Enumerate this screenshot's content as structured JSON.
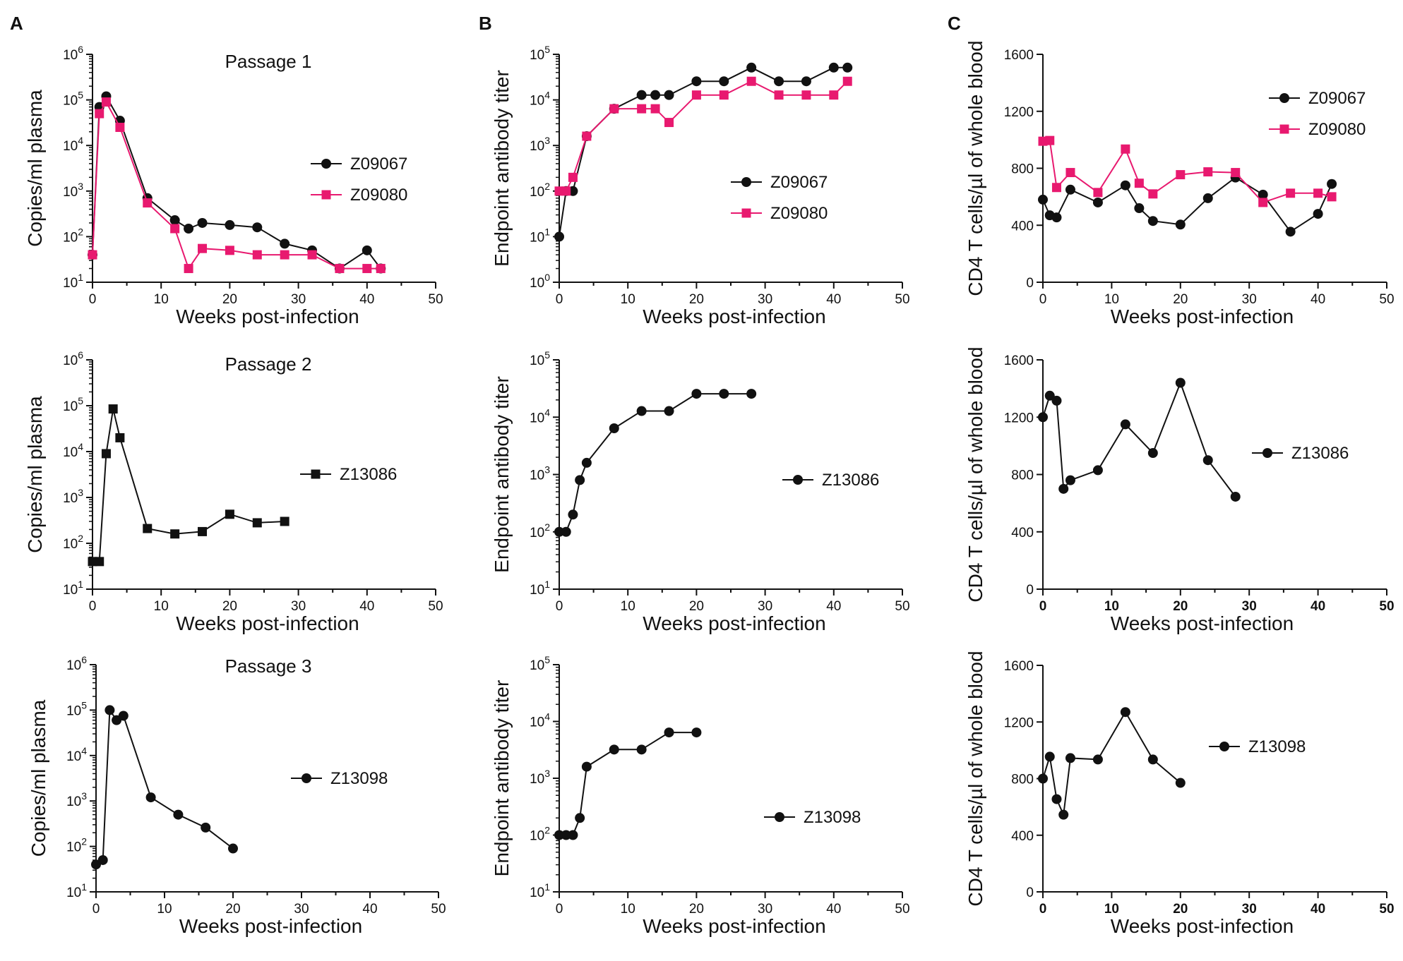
{
  "panel_labels": [
    "A",
    "B",
    "C"
  ],
  "colors": {
    "black_series": "#111111",
    "pink_series": "#e8196f",
    "axis": "#111111"
  },
  "chart_data": [
    {
      "id": "A1",
      "type": "line",
      "panel": "A",
      "title": "Passage 1",
      "xlabel": "Weeks post-infection",
      "ylabel": "Copies/ml plasma",
      "xlim": [
        0,
        50
      ],
      "xticks": [
        0,
        10,
        20,
        30,
        40,
        50
      ],
      "yscale": "log",
      "ylim_exp": [
        1,
        6
      ],
      "legend_position": "right",
      "series": [
        {
          "name": "Z09067",
          "marker": "circle",
          "color": "#111111",
          "x": [
            0,
            1,
            2,
            4,
            8,
            12,
            14,
            16,
            20,
            24,
            28,
            32,
            36,
            40,
            42
          ],
          "y": [
            40,
            70000,
            120000,
            35000,
            700,
            230,
            150,
            200,
            180,
            160,
            70,
            50,
            20,
            50,
            20
          ]
        },
        {
          "name": "Z09080",
          "marker": "square",
          "color": "#e8196f",
          "x": [
            0,
            1,
            2,
            4,
            8,
            12,
            14,
            16,
            20,
            24,
            28,
            32,
            36,
            40,
            42
          ],
          "y": [
            40,
            50000,
            90000,
            25000,
            550,
            150,
            20,
            55,
            50,
            40,
            40,
            40,
            20,
            20,
            20
          ]
        }
      ]
    },
    {
      "id": "A2",
      "type": "line",
      "panel": "A",
      "title": "Passage 2",
      "xlabel": "Weeks post-infection",
      "ylabel": "Copies/ml plasma",
      "xlim": [
        0,
        50
      ],
      "xticks": [
        0,
        10,
        20,
        30,
        40,
        50
      ],
      "yscale": "log",
      "ylim_exp": [
        1,
        6
      ],
      "legend_position": "right",
      "series": [
        {
          "name": "Z13086",
          "marker": "square",
          "color": "#111111",
          "x": [
            0,
            1,
            2,
            3,
            4,
            8,
            12,
            16,
            20,
            24,
            28
          ],
          "y": [
            40,
            40,
            9000,
            85000,
            20000,
            210,
            160,
            180,
            430,
            280,
            300
          ]
        }
      ]
    },
    {
      "id": "A3",
      "type": "line",
      "panel": "A",
      "title": "Passage 3",
      "xlabel": "Weeks post-infection",
      "ylabel": "Copies/ml plasma",
      "xlim": [
        0,
        50
      ],
      "xticks": [
        0,
        10,
        20,
        30,
        40,
        50
      ],
      "yscale": "log",
      "ylim_exp": [
        1,
        6
      ],
      "legend_position": "right",
      "series": [
        {
          "name": "Z13098",
          "marker": "circle",
          "color": "#111111",
          "x": [
            0,
            1,
            2,
            3,
            4,
            8,
            12,
            16,
            20
          ],
          "y": [
            40,
            50,
            100000,
            60000,
            75000,
            1200,
            500,
            260,
            90
          ]
        }
      ]
    },
    {
      "id": "B1",
      "type": "line",
      "panel": "B",
      "title": "",
      "xlabel": "Weeks post-infection",
      "ylabel": "Endpoint antibody titer",
      "xlim": [
        0,
        50
      ],
      "xticks": [
        0,
        10,
        20,
        30,
        40,
        50
      ],
      "yscale": "log",
      "ylim_exp": [
        0,
        5
      ],
      "legend_position": "right",
      "series": [
        {
          "name": "Z09067",
          "marker": "circle",
          "color": "#111111",
          "x": [
            0,
            1,
            2,
            4,
            8,
            12,
            14,
            16,
            20,
            24,
            28,
            32,
            36,
            40,
            42
          ],
          "y": [
            10,
            100,
            100,
            1600,
            6400,
            12800,
            12800,
            12800,
            25600,
            25600,
            51200,
            25600,
            25600,
            51200,
            51200
          ]
        },
        {
          "name": "Z09080",
          "marker": "square",
          "color": "#e8196f",
          "x": [
            0,
            1,
            2,
            4,
            8,
            12,
            14,
            16,
            20,
            24,
            28,
            32,
            36,
            40,
            42
          ],
          "y": [
            100,
            100,
            200,
            1600,
            6400,
            6400,
            6400,
            3200,
            12800,
            12800,
            25600,
            12800,
            12800,
            12800,
            25600
          ]
        }
      ]
    },
    {
      "id": "B2",
      "type": "line",
      "panel": "B",
      "title": "",
      "xlabel": "Weeks post-infection",
      "ylabel": "Endpoint antibody titer",
      "xlim": [
        0,
        50
      ],
      "xticks": [
        0,
        10,
        20,
        30,
        40,
        50
      ],
      "yscale": "log",
      "ylim_exp": [
        1,
        5
      ],
      "legend_position": "right",
      "series": [
        {
          "name": "Z13086",
          "marker": "circle",
          "color": "#111111",
          "x": [
            0,
            1,
            2,
            3,
            4,
            8,
            12,
            16,
            20,
            24,
            28
          ],
          "y": [
            100,
            100,
            200,
            800,
            1600,
            6400,
            12800,
            12800,
            25600,
            25600,
            25600
          ]
        }
      ]
    },
    {
      "id": "B3",
      "type": "line",
      "panel": "B",
      "title": "",
      "xlabel": "Weeks post-infection",
      "ylabel": "Endpoint antibody titer",
      "xlim": [
        0,
        50
      ],
      "xticks": [
        0,
        10,
        20,
        30,
        40,
        50
      ],
      "yscale": "log",
      "ylim_exp": [
        1,
        5
      ],
      "legend_position": "right",
      "series": [
        {
          "name": "Z13098",
          "marker": "circle",
          "color": "#111111",
          "x": [
            0,
            1,
            2,
            3,
            4,
            8,
            12,
            16,
            20
          ],
          "y": [
            100,
            100,
            100,
            200,
            1600,
            3200,
            3200,
            6400,
            6400
          ]
        }
      ]
    },
    {
      "id": "C1",
      "type": "line",
      "panel": "C",
      "title": "",
      "xlabel": "Weeks post-infection",
      "ylabel": "CD4 T cells/µl of whole blood",
      "xlim": [
        0,
        50
      ],
      "xticks": [
        0,
        10,
        20,
        30,
        40,
        50
      ],
      "xticks_bold": false,
      "yscale": "linear",
      "ylim": [
        0,
        1600
      ],
      "yticks": [
        0,
        400,
        800,
        1200,
        1600
      ],
      "legend_position": "top-right",
      "series": [
        {
          "name": "Z09067",
          "marker": "circle",
          "color": "#111111",
          "x": [
            0,
            1,
            2,
            4,
            8,
            12,
            14,
            16,
            20,
            24,
            28,
            32,
            36,
            40,
            42
          ],
          "y": [
            580,
            470,
            455,
            650,
            560,
            680,
            520,
            430,
            405,
            590,
            735,
            615,
            355,
            480,
            690
          ]
        },
        {
          "name": "Z09080",
          "marker": "square",
          "color": "#e8196f",
          "x": [
            0,
            1,
            2,
            4,
            8,
            12,
            14,
            16,
            20,
            24,
            28,
            32,
            36,
            40,
            42
          ],
          "y": [
            990,
            995,
            665,
            770,
            630,
            935,
            695,
            620,
            755,
            775,
            770,
            560,
            625,
            625,
            600
          ]
        }
      ]
    },
    {
      "id": "C2",
      "type": "line",
      "panel": "C",
      "title": "",
      "xlabel": "Weeks post-infection",
      "ylabel": "CD4 T cells/µl of whole blood",
      "xlim": [
        0,
        50
      ],
      "xticks": [
        0,
        10,
        20,
        30,
        40,
        50
      ],
      "xticks_bold": true,
      "yscale": "linear",
      "ylim": [
        0,
        1600
      ],
      "yticks": [
        0,
        400,
        800,
        1200,
        1600
      ],
      "legend_position": "right",
      "series": [
        {
          "name": "Z13086",
          "marker": "circle",
          "color": "#111111",
          "x": [
            0,
            1,
            2,
            3,
            4,
            8,
            12,
            16,
            20,
            24,
            28
          ],
          "y": [
            1200,
            1350,
            1315,
            700,
            760,
            830,
            1150,
            950,
            1440,
            900,
            645
          ]
        }
      ]
    },
    {
      "id": "C3",
      "type": "line",
      "panel": "C",
      "title": "",
      "xlabel": "Weeks post-infection",
      "ylabel": "CD4 T cells/µl of whole blood",
      "xlim": [
        0,
        50
      ],
      "xticks": [
        0,
        10,
        20,
        30,
        40,
        50
      ],
      "xticks_bold": true,
      "yscale": "linear",
      "ylim": [
        0,
        1600
      ],
      "yticks": [
        0,
        400,
        800,
        1200,
        1600
      ],
      "legend_position": "right",
      "series": [
        {
          "name": "Z13098",
          "marker": "circle",
          "color": "#111111",
          "x": [
            0,
            1,
            2,
            3,
            4,
            8,
            12,
            16,
            20
          ],
          "y": [
            800,
            955,
            655,
            545,
            945,
            935,
            1270,
            935,
            770
          ]
        }
      ]
    }
  ]
}
